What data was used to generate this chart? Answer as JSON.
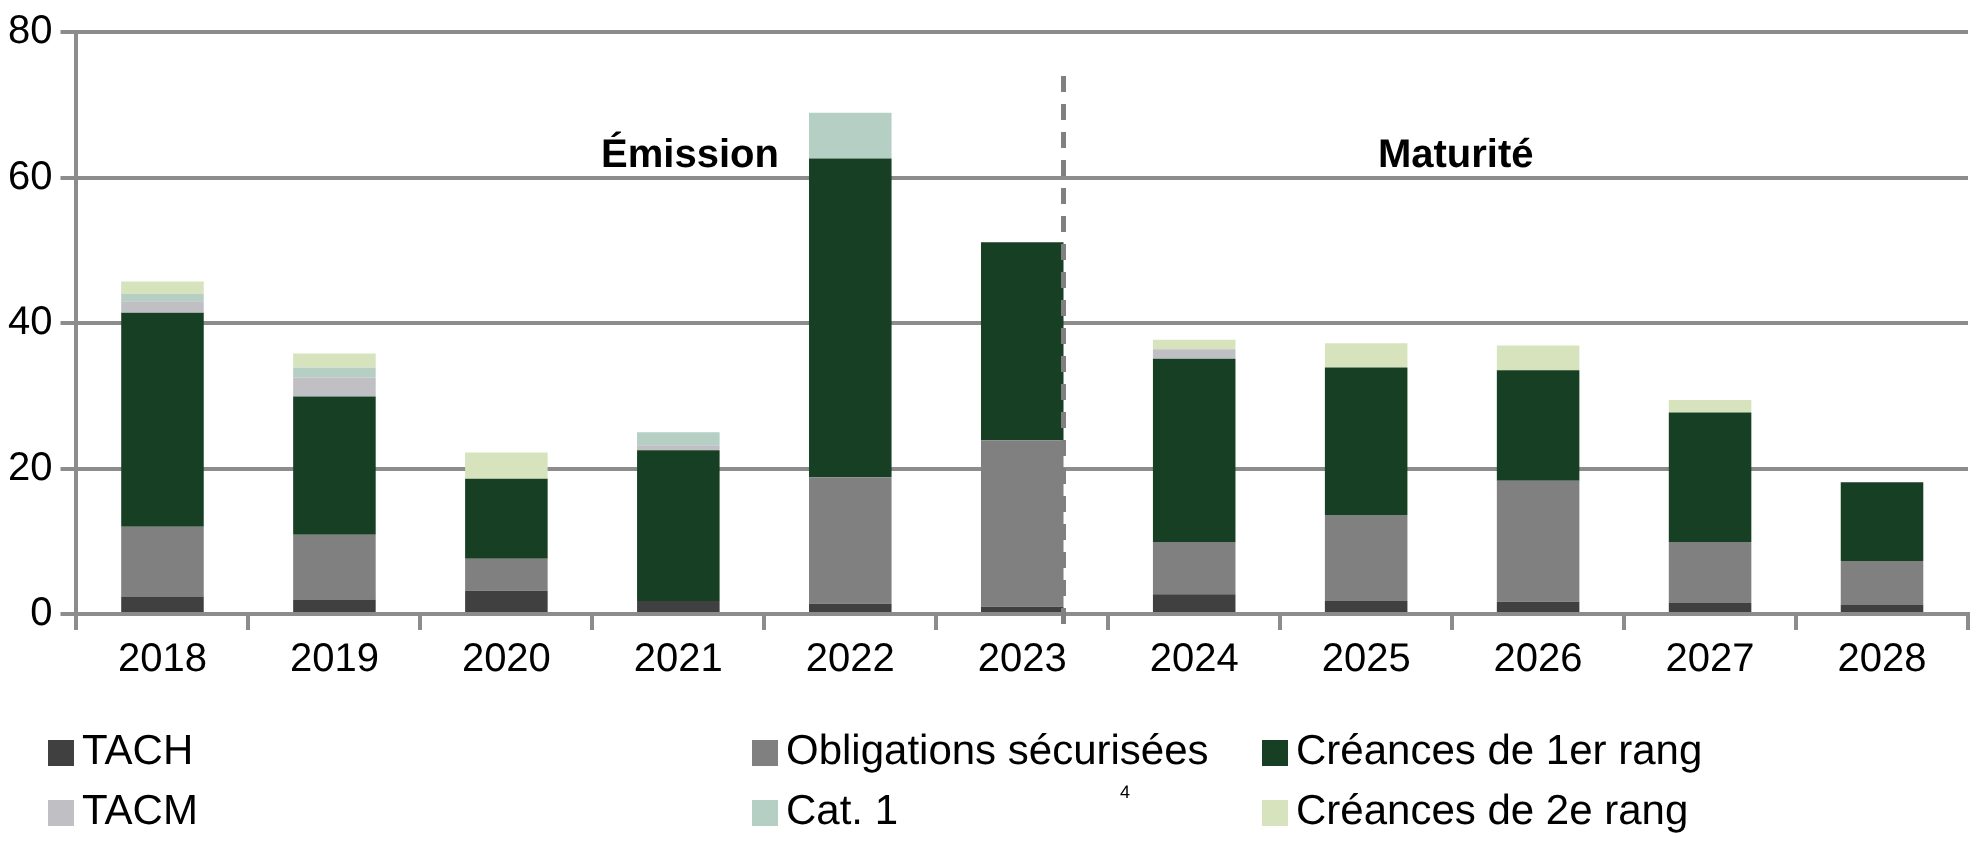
{
  "chart_data": {
    "type": "bar",
    "stacked": true,
    "categories": [
      "2018",
      "2019",
      "2020",
      "2021",
      "2022",
      "2023",
      "2024",
      "2025",
      "2026",
      "2027",
      "2028"
    ],
    "series": [
      {
        "name": "TACH",
        "color": "#404040",
        "values": [
          2.4,
          2.0,
          3.2,
          1.8,
          1.4,
          1.0,
          2.7,
          1.8,
          1.7,
          1.5,
          1.3
        ]
      },
      {
        "name": "Obligations sécurisées",
        "color": "#808080",
        "values": [
          9.6,
          8.9,
          4.4,
          null,
          17.4,
          22.9,
          7.2,
          11.8,
          16.6,
          8.4,
          6.0
        ]
      },
      {
        "name": "Créances de 1er rang",
        "color": "#173f23",
        "values": [
          29.4,
          19.0,
          11.0,
          20.7,
          43.8,
          27.2,
          25.2,
          20.3,
          15.2,
          17.8,
          10.8
        ]
      },
      {
        "name": "TACM",
        "color": "#bfbfc4",
        "values": [
          1.6,
          2.6,
          null,
          0.7,
          null,
          null,
          1.3,
          null,
          null,
          null,
          null
        ]
      },
      {
        "name": "Cat. 1",
        "color": "#b5cfc5",
        "values": [
          1.0,
          1.4,
          null,
          1.8,
          6.3,
          null,
          null,
          null,
          null,
          null,
          null
        ]
      },
      {
        "name": "Créances de 2e rang",
        "color": "#d6e3bc",
        "values": [
          1.7,
          1.9,
          3.6,
          null,
          null,
          null,
          1.3,
          3.3,
          3.4,
          1.7,
          null
        ]
      }
    ],
    "ylim": [
      0,
      80
    ],
    "yticks": [
      0,
      20,
      40,
      60,
      80
    ],
    "grid": "y",
    "legend": "bottom",
    "ref_lines": [
      {
        "axis": "x",
        "value": "2023",
        "color": "#808080",
        "line_style": "dashed"
      }
    ],
    "annotations": [
      "Émission",
      "Maturité",
      "4"
    ]
  }
}
